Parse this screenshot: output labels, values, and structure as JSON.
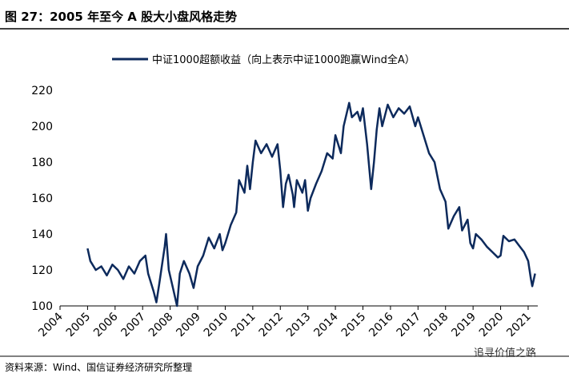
{
  "title": "图 27：2005 年至今 A 股大小盘风格走势",
  "source": "资料来源：Wind、国信证券经济研究所整理",
  "watermark": "追寻价值之路",
  "chart_data": {
    "type": "line",
    "x": [
      2005.0,
      2005.1,
      2005.3,
      2005.5,
      2005.7,
      2005.9,
      2006.1,
      2006.3,
      2006.5,
      2006.7,
      2006.9,
      2007.1,
      2007.2,
      2007.4,
      2007.5,
      2007.6,
      2007.8,
      2007.85,
      2007.95,
      2008.1,
      2008.25,
      2008.35,
      2008.5,
      2008.7,
      2008.85,
      2009.0,
      2009.2,
      2009.4,
      2009.6,
      2009.8,
      2009.9,
      2010.0,
      2010.2,
      2010.4,
      2010.5,
      2010.7,
      2010.8,
      2010.9,
      2011.0,
      2011.1,
      2011.3,
      2011.5,
      2011.7,
      2011.9,
      2012.0,
      2012.1,
      2012.2,
      2012.3,
      2012.45,
      2012.5,
      2012.6,
      2012.8,
      2012.9,
      2013.0,
      2013.1,
      2013.3,
      2013.5,
      2013.7,
      2013.9,
      2014.0,
      2014.2,
      2014.3,
      2014.5,
      2014.6,
      2014.8,
      2014.9,
      2015.0,
      2015.15,
      2015.3,
      2015.4,
      2015.5,
      2015.6,
      2015.7,
      2015.9,
      2016.1,
      2016.3,
      2016.5,
      2016.7,
      2016.9,
      2017.0,
      2017.2,
      2017.4,
      2017.6,
      2017.8,
      2018.0,
      2018.1,
      2018.3,
      2018.5,
      2018.6,
      2018.8,
      2018.9,
      2019.0,
      2019.1,
      2019.3,
      2019.5,
      2019.7,
      2019.9,
      2020.0,
      2020.1,
      2020.3,
      2020.5,
      2020.7,
      2020.85,
      2021.0,
      2021.1,
      2021.15,
      2021.25
    ],
    "series": [
      {
        "name": "中证1000超额收益（向上表示中证1000跑赢Wind全A）",
        "color": "#0d2a5c",
        "values": [
          132,
          125,
          120,
          122,
          117,
          123,
          120,
          115,
          122,
          118,
          125,
          128,
          118,
          108,
          102,
          112,
          133,
          140,
          120,
          110,
          100,
          118,
          125,
          118,
          110,
          122,
          128,
          138,
          132,
          140,
          131,
          135,
          145,
          152,
          170,
          163,
          178,
          165,
          180,
          192,
          185,
          190,
          183,
          190,
          175,
          155,
          168,
          173,
          162,
          155,
          170,
          163,
          170,
          153,
          160,
          168,
          175,
          185,
          182,
          195,
          185,
          200,
          213,
          205,
          208,
          203,
          210,
          190,
          165,
          180,
          198,
          210,
          200,
          212,
          205,
          210,
          207,
          211,
          200,
          205,
          195,
          185,
          180,
          165,
          158,
          143,
          150,
          155,
          142,
          148,
          135,
          132,
          140,
          137,
          133,
          130,
          127,
          128,
          139,
          136,
          137,
          133,
          130,
          125,
          115,
          111,
          118
        ]
      }
    ],
    "xlim": [
      2004,
      2021.35
    ],
    "xticks": [
      2004,
      2005,
      2006,
      2007,
      2008,
      2009,
      2010,
      2011,
      2012,
      2013,
      2014,
      2015,
      2016,
      2017,
      2018,
      2019,
      2020,
      2021
    ],
    "ylim": [
      100,
      220
    ],
    "yticks": [
      100,
      120,
      140,
      160,
      180,
      200,
      220
    ],
    "legend": "top"
  }
}
